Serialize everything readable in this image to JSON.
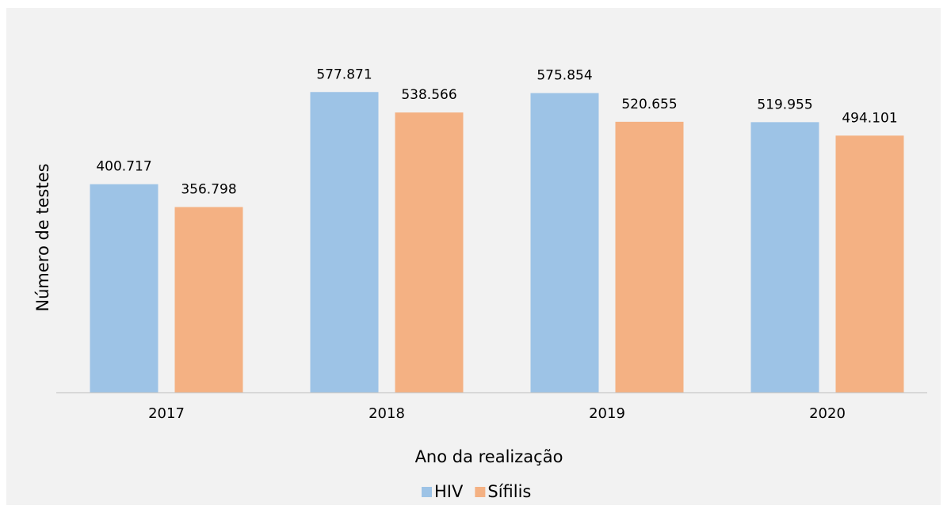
{
  "chart_data": {
    "type": "bar",
    "categories": [
      "2017",
      "2018",
      "2019",
      "2020"
    ],
    "series": [
      {
        "name": "HIV",
        "color": "#9dc3e6",
        "values": [
          400717,
          577871,
          575854,
          519955
        ],
        "value_labels": [
          "400.717",
          "577.871",
          "575.854",
          "519.955"
        ]
      },
      {
        "name": "Sífilis",
        "color": "#f4b183",
        "values": [
          356798,
          538566,
          520655,
          494101
        ],
        "value_labels": [
          "356.798",
          "538.566",
          "520.655",
          "494.101"
        ]
      }
    ],
    "xlabel": "Ano da realização",
    "ylabel": "Número de testes",
    "ylim": [
      0,
      700000
    ],
    "legend": "bottom"
  }
}
